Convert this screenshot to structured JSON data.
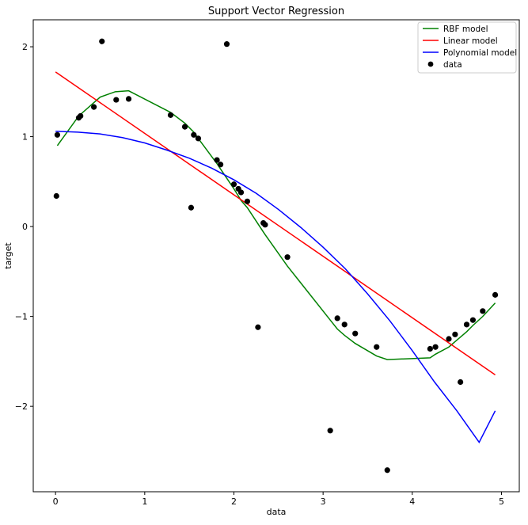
{
  "chart_data": {
    "type": "line",
    "title": "Support Vector Regression",
    "xlabel": "data",
    "ylabel": "target",
    "xlim": [
      -0.25,
      5.2
    ],
    "ylim": [
      -2.95,
      2.3
    ],
    "xticks": [
      0,
      1,
      2,
      3,
      4,
      5
    ],
    "yticks": [
      -2,
      -1,
      0,
      1,
      2
    ],
    "xtick_labels": [
      "0",
      "1",
      "2",
      "3",
      "4",
      "5"
    ],
    "ytick_labels": [
      "−2",
      "−1",
      "0",
      "1",
      "2"
    ],
    "grid": false,
    "legend_position": "top-right",
    "series": [
      {
        "name": "RBF model",
        "kind": "line",
        "color": "#008000",
        "x": [
          0.02,
          0.26,
          0.5,
          0.67,
          0.82,
          1.29,
          1.45,
          1.55,
          1.6,
          1.81,
          1.85,
          2.0,
          2.05,
          2.08,
          2.15,
          2.33,
          2.35,
          2.6,
          3.08,
          3.16,
          3.24,
          3.36,
          3.6,
          3.72,
          4.2,
          4.26,
          4.41,
          4.48,
          4.61,
          4.68,
          4.79,
          4.93
        ],
        "y": [
          0.9,
          1.23,
          1.44,
          1.5,
          1.51,
          1.27,
          1.15,
          1.05,
          0.98,
          0.7,
          0.64,
          0.42,
          0.34,
          0.29,
          0.21,
          -0.06,
          -0.09,
          -0.44,
          -1.04,
          -1.14,
          -1.21,
          -1.3,
          -1.44,
          -1.48,
          -1.46,
          -1.42,
          -1.34,
          -1.28,
          -1.17,
          -1.1,
          -1.0,
          -0.85
        ]
      },
      {
        "name": "Linear model",
        "kind": "line",
        "color": "#ff0000",
        "x": [
          0.0,
          4.93
        ],
        "y": [
          1.72,
          -1.65
        ]
      },
      {
        "name": "Polynomial model",
        "kind": "line",
        "color": "#0000ff",
        "x": [
          0.0,
          0.25,
          0.5,
          0.75,
          1.0,
          1.25,
          1.5,
          1.75,
          2.0,
          2.25,
          2.5,
          2.75,
          3.0,
          3.25,
          3.5,
          3.75,
          4.0,
          4.25,
          4.5,
          4.75,
          4.93
        ],
        "y": [
          1.06,
          1.05,
          1.03,
          0.99,
          0.93,
          0.85,
          0.76,
          0.65,
          0.52,
          0.37,
          0.19,
          -0.01,
          -0.23,
          -0.47,
          -0.75,
          -1.05,
          -1.38,
          -1.73,
          -2.05,
          -2.4,
          -2.05
        ]
      },
      {
        "name": "data",
        "kind": "scatter",
        "color": "#000000",
        "x": [
          0.01,
          0.02,
          0.26,
          0.28,
          0.43,
          0.52,
          0.68,
          0.82,
          1.29,
          1.45,
          1.52,
          1.55,
          1.6,
          1.81,
          1.85,
          1.92,
          2.0,
          2.05,
          2.08,
          2.15,
          2.27,
          2.33,
          2.35,
          2.6,
          3.08,
          3.16,
          3.24,
          3.36,
          3.6,
          3.72,
          4.2,
          4.26,
          4.41,
          4.48,
          4.54,
          4.61,
          4.68,
          4.79,
          4.93
        ],
        "y": [
          0.34,
          1.02,
          1.21,
          1.23,
          1.33,
          2.06,
          1.41,
          1.42,
          1.24,
          1.11,
          0.21,
          1.02,
          0.98,
          0.74,
          0.69,
          2.03,
          0.47,
          0.42,
          0.38,
          0.28,
          -1.12,
          0.04,
          0.02,
          -0.34,
          -2.27,
          -1.02,
          -1.09,
          -1.19,
          -1.34,
          -2.71,
          -1.36,
          -1.34,
          -1.25,
          -1.2,
          -1.73,
          -1.09,
          -1.04,
          -0.94,
          -0.76
        ]
      }
    ]
  }
}
